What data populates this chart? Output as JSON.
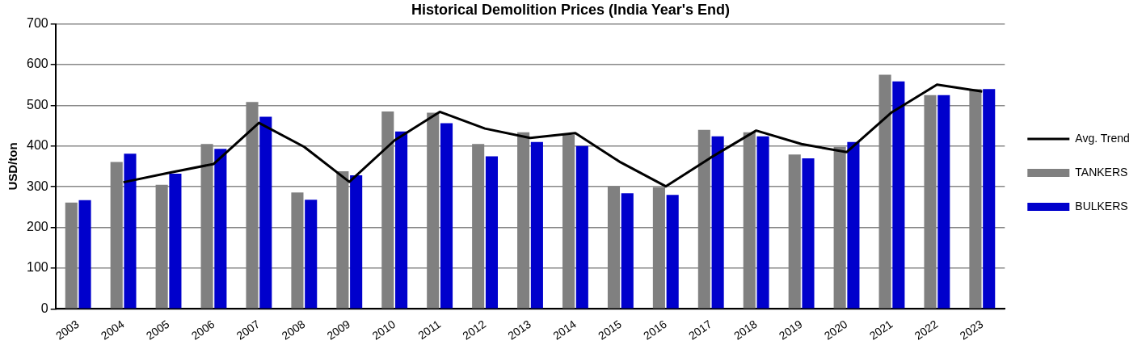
{
  "chart_data": {
    "type": "bar",
    "title": "Historical Demolition Prices (India Year's End)",
    "ylabel": "USD/ton",
    "categories": [
      "2003",
      "2004",
      "2005",
      "2006",
      "2007",
      "2008",
      "2009",
      "2010",
      "2011",
      "2012",
      "2013",
      "2014",
      "2015",
      "2016",
      "2017",
      "2018",
      "2019",
      "2020",
      "2021",
      "2022",
      "2023"
    ],
    "series": [
      {
        "name": "TANKERS",
        "color": "#808080",
        "values": [
          261,
          361,
          305,
          405,
          508,
          286,
          338,
          485,
          482,
          405,
          434,
          428,
          301,
          299,
          440,
          434,
          379,
          398,
          575,
          525,
          540
        ]
      },
      {
        "name": "BULKERS",
        "color": "#0000cc",
        "values": [
          267,
          381,
          332,
          393,
          472,
          268,
          328,
          436,
          456,
          375,
          410,
          400,
          284,
          280,
          424,
          424,
          370,
          410,
          559,
          525,
          540
        ]
      },
      {
        "name": "Avg. Trend",
        "type": "line",
        "color": "#000000",
        "values": [
          null,
          311,
          334,
          356,
          457,
          398,
          312,
          414,
          484,
          443,
          420,
          432,
          360,
          301,
          372,
          438,
          405,
          385,
          483,
          551,
          534
        ]
      }
    ],
    "ylim": [
      0,
      700
    ],
    "yticks": [
      0,
      100,
      200,
      300,
      400,
      500,
      600,
      700
    ],
    "grid": "y",
    "legend": "right",
    "marker": "none"
  }
}
